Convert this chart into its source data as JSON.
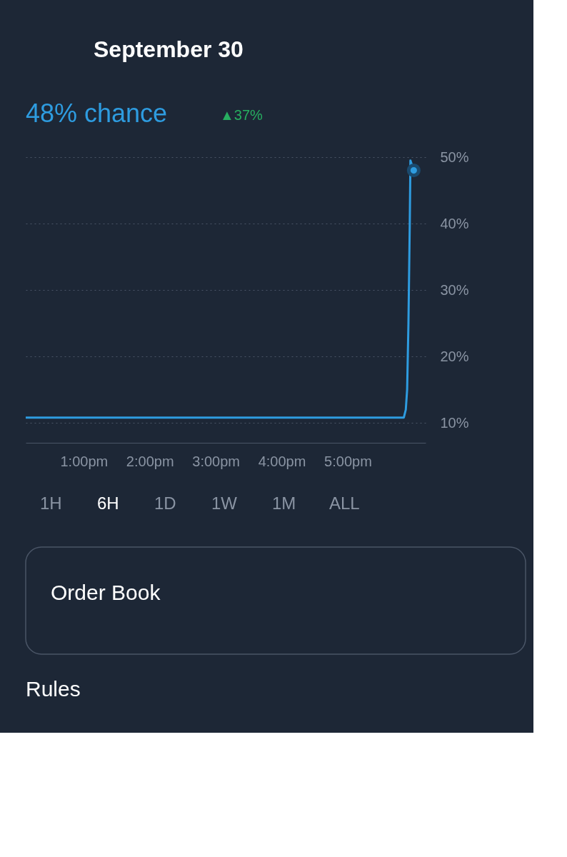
{
  "chart_data": {
    "type": "line",
    "title": "September 30",
    "subtitle": "48% chance",
    "annotations": [
      "▲37%",
      "1H",
      "6H",
      "1D",
      "1W",
      "1M",
      "ALL",
      "Order Book",
      "Rules"
    ],
    "x": [
      12.12,
      17.85,
      17.88,
      17.9,
      17.92,
      17.94,
      17.95,
      18.0
    ],
    "series": [
      {
        "color": "#2e9ce0",
        "values": [
          10.8,
          10.8,
          12,
          15,
          25,
          40,
          49.5,
          48
        ]
      },
      {
        "type": "scatter",
        "marker": "circle",
        "color": "#2e9ce0",
        "x": [
          18.0
        ],
        "values": [
          48
        ]
      }
    ],
    "xlim": [
      12.12,
      18.18
    ],
    "xticks": [
      {
        "value": 13,
        "label": "1:00pm"
      },
      {
        "value": 14,
        "label": "2:00pm"
      },
      {
        "value": 15,
        "label": "3:00pm"
      },
      {
        "value": 16,
        "label": "4:00pm"
      },
      {
        "value": 17,
        "label": "5:00pm"
      }
    ],
    "ylim": [
      7,
      50
    ],
    "yticks": [
      {
        "value": 10,
        "label": "10%"
      },
      {
        "value": 20,
        "label": "20%"
      },
      {
        "value": 30,
        "label": "30%"
      },
      {
        "value": 40,
        "label": "40%"
      },
      {
        "value": 50,
        "label": "50%"
      }
    ],
    "grid": "y",
    "line_style": "solid"
  }
}
